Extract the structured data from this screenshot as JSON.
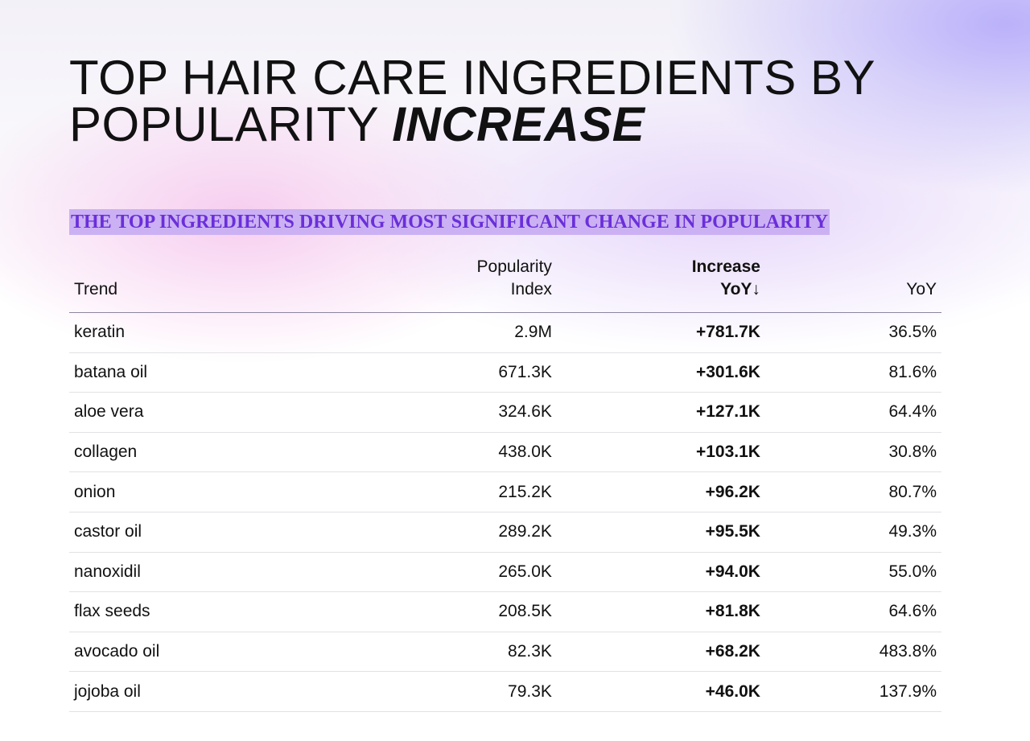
{
  "header": {
    "title": "TOP HAIR CARE INGREDIENTS BY POPULARITY",
    "title_emphasis": "INCREASE",
    "subtitle": "THE TOP INGREDIENTS DRIVING MOST SIGNIFICANT CHANGE IN POPULARITY"
  },
  "table": {
    "columns": [
      "Trend",
      "Popularity Index",
      "Increase YoY↓",
      "YoY"
    ],
    "rows": [
      [
        "keratin",
        "2.9M",
        "+781.7K",
        "36.5%"
      ],
      [
        "batana oil",
        "671.3K",
        "+301.6K",
        "81.6%"
      ],
      [
        "aloe vera",
        "324.6K",
        "+127.1K",
        "64.4%"
      ],
      [
        "collagen",
        "438.0K",
        "+103.1K",
        "30.8%"
      ],
      [
        "onion",
        "215.2K",
        "+96.2K",
        "80.7%"
      ],
      [
        "castor oil",
        "289.2K",
        "+95.5K",
        "49.3%"
      ],
      [
        "nanoxidil",
        "265.0K",
        "+94.0K",
        "55.0%"
      ],
      [
        "flax seeds",
        "208.5K",
        "+81.8K",
        "64.6%"
      ],
      [
        "avocado oil",
        "82.3K",
        "+68.2K",
        "483.8%"
      ],
      [
        "jojoba oil",
        "79.3K",
        "+46.0K",
        "137.9%"
      ]
    ]
  }
}
